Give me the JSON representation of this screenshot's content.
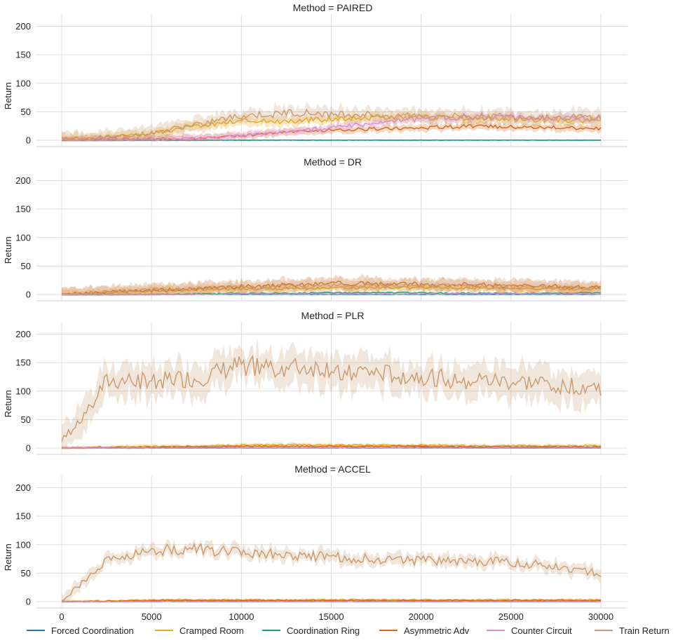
{
  "chart_data": {
    "type": "line",
    "layout": "facet-rows",
    "facet_variable": "Method",
    "x_range": [
      0,
      30000
    ],
    "x_ticks": [
      0,
      5000,
      10000,
      15000,
      20000,
      25000,
      30000
    ],
    "x_tick_labels": [
      "0",
      "5000",
      "10000",
      "15000",
      "20000",
      "25000",
      "30000"
    ],
    "y_range": [
      -10,
      220
    ],
    "y_ticks": [
      0,
      50,
      100,
      150,
      200
    ],
    "y_tick_labels": [
      "0",
      "50",
      "100",
      "150",
      "200"
    ],
    "ylabel": "Return",
    "xlabel": "",
    "grid": true,
    "legend_position": "bottom",
    "legend": [
      {
        "name": "Forced Coordination",
        "color": "#1f77b4"
      },
      {
        "name": "Cramped Room",
        "color": "#e6a817"
      },
      {
        "name": "Coordination Ring",
        "color": "#1a9e77"
      },
      {
        "name": "Asymmetric Adv",
        "color": "#d4651a"
      },
      {
        "name": "Counter Circuit",
        "color": "#d98ad9"
      },
      {
        "name": "Train Return",
        "color": "#c99a6e"
      }
    ],
    "panels": [
      {
        "title": "Method = PAIRED",
        "x": [
          0,
          2500,
          5000,
          7500,
          10000,
          12500,
          15000,
          17500,
          20000,
          22500,
          25000,
          27500,
          30000
        ],
        "series": [
          {
            "name": "Forced Coordination",
            "values": [
              0,
              0,
              0,
              0,
              0,
              0,
              0,
              0,
              0,
              0,
              0,
              0,
              0
            ],
            "band": 0
          },
          {
            "name": "Cramped Room",
            "values": [
              2,
              5,
              12,
              25,
              35,
              33,
              38,
              40,
              40,
              38,
              37,
              36,
              35
            ],
            "band": 8
          },
          {
            "name": "Coordination Ring",
            "values": [
              0,
              0,
              0,
              0,
              0,
              0,
              0,
              0,
              0,
              0,
              0,
              0,
              0
            ],
            "band": 0
          },
          {
            "name": "Asymmetric Adv",
            "values": [
              0,
              2,
              3,
              3,
              8,
              14,
              18,
              20,
              22,
              24,
              24,
              22,
              20
            ],
            "band": 6
          },
          {
            "name": "Counter Circuit",
            "values": [
              0,
              1,
              2,
              3,
              8,
              15,
              22,
              30,
              38,
              40,
              40,
              38,
              38
            ],
            "band": 6
          },
          {
            "name": "Train Return",
            "values": [
              2,
              6,
              12,
              28,
              42,
              48,
              46,
              44,
              43,
              42,
              41,
              40,
              40
            ],
            "band": 12
          }
        ]
      },
      {
        "title": "Method = DR",
        "x": [
          0,
          2500,
          5000,
          7500,
          10000,
          12500,
          15000,
          17500,
          20000,
          22500,
          25000,
          27500,
          30000
        ],
        "series": [
          {
            "name": "Forced Coordination",
            "values": [
              0,
              0,
              0,
              0,
              0,
              0,
              0,
              0,
              0,
              0,
              0,
              0,
              0
            ],
            "band": 0
          },
          {
            "name": "Cramped Room",
            "values": [
              0,
              3,
              6,
              8,
              10,
              10,
              12,
              12,
              12,
              12,
              10,
              10,
              10
            ],
            "band": 6
          },
          {
            "name": "Coordination Ring",
            "values": [
              0,
              0,
              0,
              1,
              2,
              2,
              3,
              3,
              3,
              2,
              2,
              2,
              3
            ],
            "band": 2
          },
          {
            "name": "Asymmetric Adv",
            "values": [
              0,
              5,
              7,
              10,
              14,
              16,
              20,
              18,
              18,
              18,
              15,
              14,
              12
            ],
            "band": 10
          },
          {
            "name": "Counter Circuit",
            "values": [
              0,
              0,
              0,
              0,
              1,
              1,
              1,
              1,
              1,
              1,
              1,
              1,
              1
            ],
            "band": 1
          },
          {
            "name": "Train Return",
            "values": [
              0,
              4,
              8,
              10,
              12,
              14,
              16,
              16,
              16,
              15,
              14,
              13,
              12
            ],
            "band": 10
          }
        ]
      },
      {
        "title": "Method = PLR",
        "x": [
          0,
          2500,
          5000,
          7500,
          10000,
          12500,
          15000,
          17500,
          20000,
          22500,
          25000,
          27500,
          30000
        ],
        "series": [
          {
            "name": "Forced Coordination",
            "values": [
              0,
              0,
              0,
              0,
              0,
              0,
              0,
              0,
              0,
              0,
              0,
              0,
              0
            ],
            "band": 0
          },
          {
            "name": "Cramped Room",
            "values": [
              0,
              2,
              3,
              3,
              5,
              6,
              5,
              5,
              5,
              4,
              4,
              4,
              4
            ],
            "band": 3
          },
          {
            "name": "Coordination Ring",
            "values": [
              0,
              0,
              0,
              0,
              0,
              0,
              0,
              0,
              1,
              0,
              0,
              0,
              0
            ],
            "band": 1
          },
          {
            "name": "Asymmetric Adv",
            "values": [
              0,
              1,
              1,
              2,
              3,
              3,
              3,
              3,
              3,
              2,
              2,
              2,
              2
            ],
            "band": 2
          },
          {
            "name": "Counter Circuit",
            "values": [
              0,
              0,
              0,
              0,
              0,
              0,
              0,
              0,
              0,
              0,
              0,
              0,
              0
            ],
            "band": 0
          },
          {
            "name": "Train Return",
            "values": [
              10,
              115,
              120,
              120,
              145,
              140,
              140,
              130,
              125,
              120,
              115,
              112,
              105
            ],
            "band": 28
          }
        ]
      },
      {
        "title": "Method = ACCEL",
        "x": [
          0,
          2500,
          5000,
          7500,
          10000,
          12500,
          15000,
          17500,
          20000,
          22500,
          25000,
          27500,
          30000
        ],
        "series": [
          {
            "name": "Forced Coordination",
            "values": [
              0,
              0,
              0,
              0,
              0,
              0,
              0,
              0,
              0,
              0,
              0,
              0,
              0
            ],
            "band": 0
          },
          {
            "name": "Cramped Room",
            "values": [
              0,
              1,
              3,
              3,
              3,
              3,
              3,
              3,
              3,
              3,
              3,
              3,
              3
            ],
            "band": 2
          },
          {
            "name": "Coordination Ring",
            "values": [
              0,
              0,
              0,
              0,
              0,
              0,
              0,
              0,
              0,
              0,
              0,
              0,
              0
            ],
            "band": 0
          },
          {
            "name": "Asymmetric Adv",
            "values": [
              0,
              1,
              2,
              2,
              2,
              2,
              2,
              2,
              2,
              2,
              2,
              2,
              2
            ],
            "band": 2
          },
          {
            "name": "Counter Circuit",
            "values": [
              0,
              0,
              0,
              0,
              0,
              0,
              0,
              0,
              0,
              0,
              0,
              0,
              0
            ],
            "band": 0
          },
          {
            "name": "Train Return",
            "values": [
              2,
              70,
              90,
              92,
              85,
              82,
              78,
              75,
              72,
              70,
              70,
              62,
              50
            ],
            "band": 10
          }
        ]
      }
    ]
  }
}
